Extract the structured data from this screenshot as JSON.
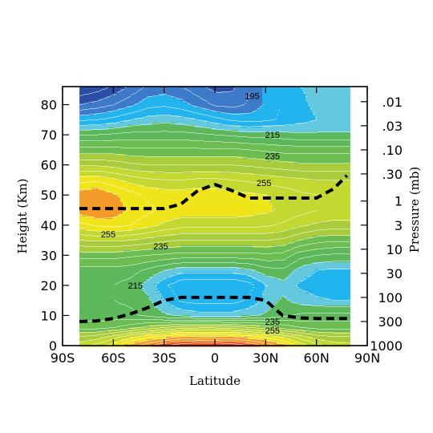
{
  "chart_data": {
    "type": "heatmap",
    "title": "",
    "xlabel": "Latitude",
    "ylabel": "Height (Km)",
    "y2label": "Pressure (mb)",
    "xlim": [
      -90,
      90
    ],
    "ylim": [
      0,
      86
    ],
    "data_xlim": [
      -80,
      80
    ],
    "x_ticks": [
      {
        "value": -90,
        "label": "90S"
      },
      {
        "value": -60,
        "label": "60S"
      },
      {
        "value": -30,
        "label": "30S"
      },
      {
        "value": 0,
        "label": "0"
      },
      {
        "value": 30,
        "label": "30N"
      },
      {
        "value": 60,
        "label": "60N"
      },
      {
        "value": 90,
        "label": "90N"
      }
    ],
    "y_ticks": [
      0,
      10,
      20,
      30,
      40,
      50,
      60,
      70,
      80
    ],
    "y2_ticks": [
      {
        "label": ".01",
        "height": 81
      },
      {
        "label": ".03",
        "height": 73
      },
      {
        "label": ".10",
        "height": 65
      },
      {
        "label": ".30",
        "height": 57
      },
      {
        "label": "1",
        "height": 48
      },
      {
        "label": "3",
        "height": 40
      },
      {
        "label": "10",
        "height": 32
      },
      {
        "label": "30",
        "height": 24
      },
      {
        "label": "100",
        "height": 16
      },
      {
        "label": "300",
        "height": 8
      },
      {
        "label": "1000",
        "height": 0
      }
    ],
    "temperature_bands": [
      {
        "height": 0,
        "temps": [
          248,
          252,
          258,
          268,
          274,
          280,
          284,
          286,
          286,
          284,
          280,
          274,
          268,
          258,
          252,
          248,
          247
        ]
      },
      {
        "height": 3,
        "temps": [
          240,
          242,
          247,
          253,
          258,
          262,
          265,
          266,
          266,
          265,
          262,
          258,
          253,
          247,
          242,
          240,
          240
        ]
      },
      {
        "height": 6,
        "temps": [
          228,
          228,
          230,
          233,
          237,
          240,
          243,
          244,
          244,
          243,
          240,
          237,
          233,
          230,
          228,
          228,
          228
        ]
      },
      {
        "height": 10,
        "temps": [
          222,
          222,
          222,
          221,
          219,
          216,
          214,
          212,
          212,
          212,
          214,
          216,
          219,
          221,
          222,
          222,
          222
        ]
      },
      {
        "height": 15,
        "temps": [
          221,
          221,
          220,
          219,
          216,
          210,
          204,
          203,
          203,
          203,
          206,
          212,
          216,
          213,
          211,
          210,
          210
        ]
      },
      {
        "height": 20,
        "temps": [
          220,
          220,
          220,
          218,
          213,
          206,
          201,
          200,
          200,
          200,
          203,
          210,
          213,
          209,
          207,
          206,
          206
        ]
      },
      {
        "height": 25,
        "temps": [
          223,
          223,
          223,
          222,
          219,
          215,
          212,
          212,
          212,
          212,
          214,
          218,
          219,
          213,
          210,
          209,
          209
        ]
      },
      {
        "height": 30,
        "temps": [
          232,
          232,
          232,
          231,
          230,
          229,
          228,
          228,
          228,
          228,
          228,
          229,
          228,
          222,
          220,
          219,
          219
        ]
      },
      {
        "height": 35,
        "temps": [
          245,
          246,
          246,
          245,
          243,
          241,
          240,
          240,
          240,
          240,
          240,
          240,
          239,
          235,
          232,
          231,
          231
        ]
      },
      {
        "height": 40,
        "temps": [
          258,
          261,
          262,
          260,
          257,
          254,
          252,
          252,
          252,
          252,
          252,
          251,
          249,
          246,
          244,
          243,
          243
        ]
      },
      {
        "height": 45,
        "temps": [
          268,
          270,
          268,
          264,
          261,
          259,
          258,
          258,
          258,
          258,
          257,
          256,
          254,
          252,
          250,
          249,
          249
        ]
      },
      {
        "height": 50,
        "temps": [
          268,
          270,
          266,
          262,
          259,
          258,
          258,
          258,
          258,
          257,
          256,
          255,
          253,
          251,
          250,
          249,
          249
        ]
      },
      {
        "height": 55,
        "temps": [
          258,
          259,
          256,
          253,
          251,
          250,
          250,
          251,
          251,
          250,
          249,
          248,
          247,
          246,
          245,
          245,
          245
        ]
      },
      {
        "height": 60,
        "temps": [
          244,
          244,
          243,
          241,
          240,
          240,
          240,
          240,
          240,
          240,
          239,
          238,
          237,
          236,
          236,
          236,
          236
        ]
      },
      {
        "height": 65,
        "temps": [
          232,
          232,
          232,
          231,
          231,
          231,
          231,
          231,
          231,
          231,
          230,
          229,
          228,
          228,
          228,
          228,
          228
        ]
      },
      {
        "height": 70,
        "temps": [
          220,
          220,
          221,
          222,
          222,
          222,
          222,
          221,
          220,
          219,
          218,
          218,
          217,
          216,
          216,
          216,
          216
        ]
      },
      {
        "height": 75,
        "temps": [
          204,
          205,
          207,
          210,
          212,
          213,
          212,
          210,
          207,
          204,
          203,
          204,
          206,
          208,
          210,
          211,
          211
        ]
      },
      {
        "height": 80,
        "temps": [
          190,
          192,
          195,
          199,
          203,
          204,
          202,
          198,
          194,
          193,
          196,
          201,
          206,
          209,
          211,
          211,
          211
        ]
      },
      {
        "height": 86,
        "temps": [
          180,
          182,
          186,
          191,
          196,
          197,
          195,
          191,
          188,
          189,
          194,
          201,
          206,
          210,
          211,
          211,
          211
        ]
      }
    ],
    "band_latitudes": [
      -80,
      -70,
      -60,
      -50,
      -40,
      -30,
      -20,
      -10,
      0,
      10,
      20,
      30,
      40,
      50,
      60,
      70,
      80
    ],
    "color_levels": [
      {
        "min": 0,
        "color": "#2b4ea6"
      },
      {
        "min": 190,
        "color": "#3d7ac9"
      },
      {
        "min": 200,
        "color": "#22b4ef"
      },
      {
        "min": 210,
        "color": "#64c8df"
      },
      {
        "min": 215,
        "color": "#5cb85a"
      },
      {
        "min": 225,
        "color": "#6cbd52"
      },
      {
        "min": 235,
        "color": "#a8cc3c"
      },
      {
        "min": 245,
        "color": "#c4d832"
      },
      {
        "min": 255,
        "color": "#f0e41a"
      },
      {
        "min": 265,
        "color": "#f39c2a"
      },
      {
        "min": 275,
        "color": "#ee5a24"
      }
    ],
    "contour_labels": [
      {
        "text": "195",
        "lat": 22,
        "height": 83
      },
      {
        "text": "215",
        "lat": 34,
        "height": 70
      },
      {
        "text": "235",
        "lat": 34,
        "height": 63
      },
      {
        "text": "255",
        "lat": 29,
        "height": 54
      },
      {
        "text": "255",
        "lat": -63,
        "height": 37
      },
      {
        "text": "235",
        "lat": -32,
        "height": 33
      },
      {
        "text": "215",
        "lat": -47,
        "height": 20
      },
      {
        "text": "235",
        "lat": 34,
        "height": 8
      },
      {
        "text": "255",
        "lat": 34,
        "height": 5
      }
    ],
    "series": [
      {
        "x": [
          -80,
          -60,
          -40,
          -30,
          -20,
          -10,
          0,
          10,
          20,
          30,
          40,
          50,
          60,
          70,
          78
        ],
        "y": [
          45.5,
          45.5,
          45.5,
          45.5,
          47,
          51.5,
          53.5,
          51.5,
          49,
          49,
          49,
          49,
          49,
          52,
          56.5
        ]
      },
      {
        "x": [
          -80,
          -70,
          -60,
          -50,
          -40,
          -30,
          -20,
          -10,
          0,
          10,
          20,
          30,
          40,
          50,
          60,
          70,
          80
        ],
        "y": [
          8,
          8.2,
          9,
          10.5,
          12.5,
          15,
          16,
          16,
          16,
          16,
          16,
          15,
          10,
          9.2,
          9,
          9,
          9
        ]
      }
    ]
  }
}
